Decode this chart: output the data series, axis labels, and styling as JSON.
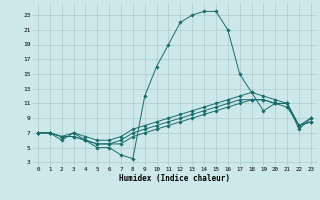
{
  "xlabel": "Humidex (Indice chaleur)",
  "bg_color": "#cce8ea",
  "grid_color": "#aacccc",
  "line_color": "#1a6b6b",
  "xlim": [
    -0.5,
    23.5
  ],
  "ylim": [
    2.5,
    24.5
  ],
  "xticks": [
    0,
    1,
    2,
    3,
    4,
    5,
    6,
    7,
    8,
    9,
    10,
    11,
    12,
    13,
    14,
    15,
    16,
    17,
    18,
    19,
    20,
    21,
    22,
    23
  ],
  "yticks": [
    3,
    5,
    7,
    9,
    11,
    13,
    15,
    17,
    19,
    21,
    23
  ],
  "line1_x": [
    0,
    1,
    2,
    3,
    4,
    5,
    6,
    7,
    8,
    9,
    10,
    11,
    12,
    13,
    14,
    15,
    16,
    17,
    18,
    19,
    20,
    21,
    22,
    23
  ],
  "line1_y": [
    7,
    7,
    6,
    7,
    6,
    5,
    5,
    4,
    3.5,
    12,
    16,
    19,
    22,
    23,
    23.5,
    23.5,
    21,
    15,
    12.5,
    10,
    11,
    11,
    7.5,
    9
  ],
  "line2_x": [
    0,
    1,
    2,
    3,
    4,
    5,
    6,
    7,
    8,
    9,
    10,
    11,
    12,
    13,
    14,
    15,
    16,
    17,
    18,
    19,
    20,
    21,
    22,
    23
  ],
  "line2_y": [
    7,
    7,
    6.5,
    7,
    6.5,
    6,
    6,
    6.5,
    7.5,
    8,
    8.5,
    9,
    9.5,
    10,
    10.5,
    11,
    11.5,
    12,
    12.5,
    12,
    11.5,
    11,
    8,
    9
  ],
  "line3_x": [
    0,
    1,
    2,
    3,
    4,
    5,
    6,
    7,
    8,
    9,
    10,
    11,
    12,
    13,
    14,
    15,
    16,
    17,
    18,
    19,
    20,
    21,
    22,
    23
  ],
  "line3_y": [
    7,
    7,
    6.5,
    6.5,
    6,
    5.5,
    5.5,
    6,
    7,
    7.5,
    8,
    8.5,
    9,
    9.5,
    10,
    10.5,
    11,
    11.5,
    11.5,
    11.5,
    11,
    11,
    8,
    8.5
  ],
  "line4_x": [
    0,
    1,
    2,
    3,
    4,
    5,
    6,
    7,
    8,
    9,
    10,
    11,
    12,
    13,
    14,
    15,
    16,
    17,
    18,
    19,
    20,
    21,
    22,
    23
  ],
  "line4_y": [
    7,
    7,
    6.5,
    6.5,
    6,
    5.5,
    5.5,
    5.5,
    6.5,
    7,
    7.5,
    8,
    8.5,
    9,
    9.5,
    10,
    10.5,
    11,
    11.5,
    11.5,
    11,
    10.5,
    8,
    8.5
  ]
}
